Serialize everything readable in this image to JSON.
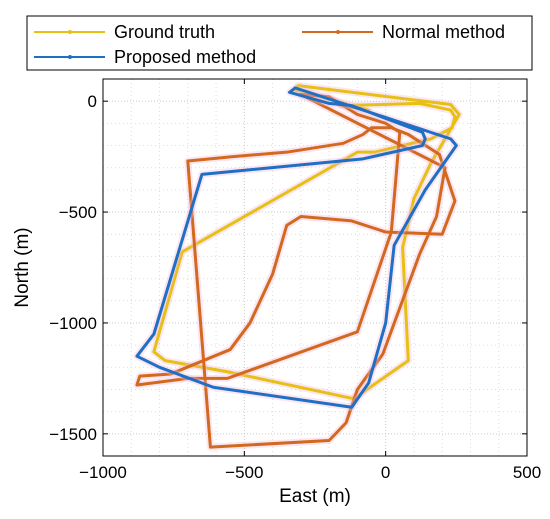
{
  "chart_data": {
    "type": "line",
    "title": "",
    "xlabel": "East (m)",
    "ylabel": "North (m)",
    "xlim": [
      -1000,
      500
    ],
    "ylim": [
      -1600,
      100
    ],
    "xticks": [
      -1000,
      -500,
      0,
      500
    ],
    "xtick_labels": [
      "−1000",
      "−500",
      "0",
      "500"
    ],
    "yticks": [
      0,
      -500,
      -1000,
      -1500
    ],
    "ytick_labels": [
      "0",
      "−500",
      "−1000",
      "−1500"
    ],
    "grid": true,
    "legend_position": "top",
    "series": [
      {
        "name": "Ground truth",
        "color": "#E6C012",
        "x": [
          -320,
          -310,
          230,
          260,
          160,
          100,
          60,
          80,
          -100,
          -120,
          -560,
          -780,
          -820,
          -720,
          -100,
          -40,
          160,
          235,
          245,
          230,
          120,
          -160,
          -60,
          -320
        ],
        "y": [
          50,
          70,
          -15,
          -60,
          -280,
          -440,
          -660,
          -1170,
          -1330,
          -1340,
          -1220,
          -1170,
          -1130,
          -680,
          -230,
          -230,
          -170,
          -120,
          -70,
          -40,
          -10,
          -20,
          -40,
          50
        ]
      },
      {
        "name": "Normal method",
        "color": "#D2691E",
        "x": [
          -300,
          -200,
          -150,
          -100,
          0,
          50,
          20,
          -100,
          -560,
          -700,
          -880,
          -870,
          -760,
          -550,
          -480,
          -400,
          -350,
          -300,
          -120,
          0,
          200,
          245,
          190,
          80,
          20,
          -50,
          -80,
          -150,
          -350,
          -540,
          -700,
          -620,
          -200,
          -140,
          -100,
          -10,
          120,
          180,
          210,
          -300
        ],
        "y": [
          30,
          20,
          -20,
          -60,
          -100,
          -140,
          -590,
          -1040,
          -1250,
          -1250,
          -1280,
          -1240,
          -1230,
          -1120,
          -1000,
          -780,
          -560,
          -520,
          -540,
          -590,
          -600,
          -450,
          -240,
          -150,
          -120,
          -120,
          -150,
          -190,
          -230,
          -250,
          -270,
          -1560,
          -1530,
          -1450,
          -1300,
          -1140,
          -690,
          -520,
          -300,
          30
        ]
      },
      {
        "name": "Proposed method",
        "color": "#1F6FC5",
        "x": [
          -340,
          -320,
          230,
          250,
          140,
          30,
          0,
          -60,
          -120,
          -610,
          -800,
          -880,
          -820,
          -650,
          -80,
          -10,
          130,
          140,
          130,
          -120,
          -200,
          -340
        ],
        "y": [
          40,
          60,
          -170,
          -200,
          -400,
          -650,
          -1000,
          -1270,
          -1380,
          -1290,
          -1200,
          -1150,
          -1050,
          -330,
          -260,
          -240,
          -200,
          -170,
          -140,
          -20,
          -10,
          40
        ]
      }
    ]
  }
}
